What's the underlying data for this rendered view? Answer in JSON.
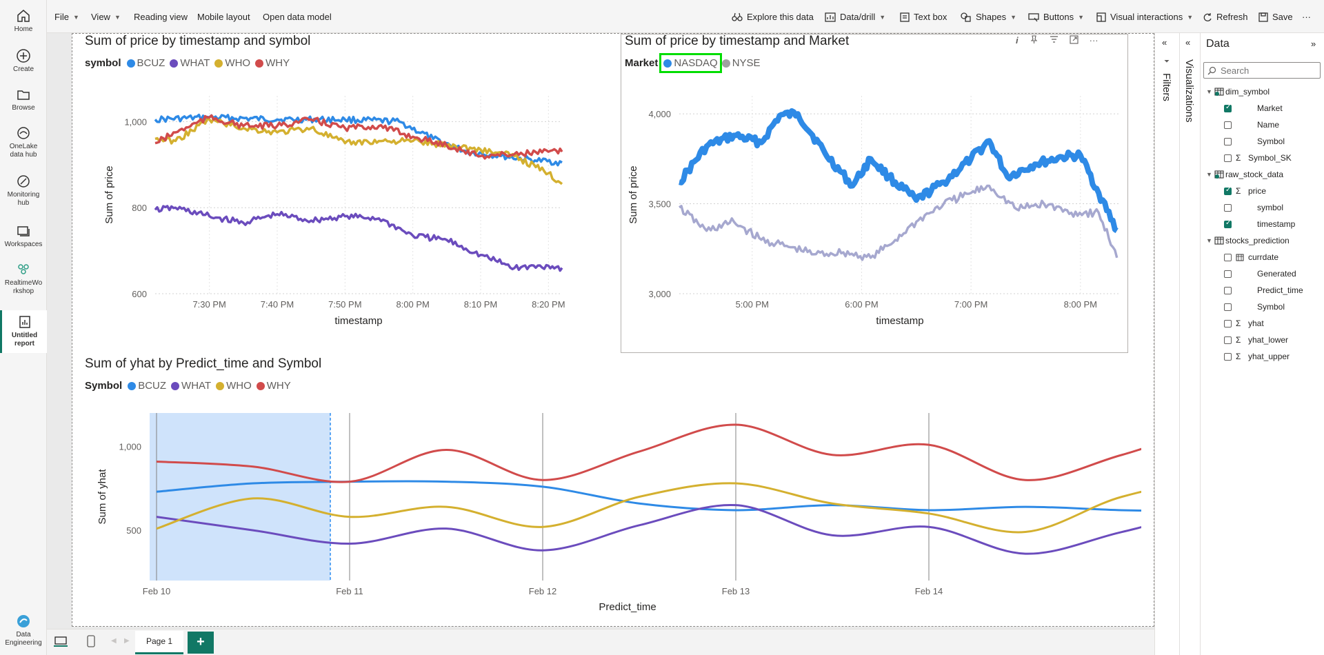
{
  "nav": {
    "items": [
      {
        "label": "Home",
        "icon": "home-icon"
      },
      {
        "label": "Create",
        "icon": "plus-circle-icon"
      },
      {
        "label": "Browse",
        "icon": "folder-icon"
      },
      {
        "label": "OneLake data hub",
        "icon": "onelake-icon"
      },
      {
        "label": "Monitoring hub",
        "icon": "monitor-icon"
      },
      {
        "label": "Workspaces",
        "icon": "workspaces-icon"
      },
      {
        "label": "RealtimeWorkshop",
        "icon": "workshop-icon"
      },
      {
        "label": "Untitled report",
        "icon": "report-icon"
      }
    ],
    "footer_label": "Data Engineering"
  },
  "toolbar": {
    "file": "File",
    "view": "View",
    "reading_view": "Reading view",
    "mobile_layout": "Mobile layout",
    "open_data_model": "Open data model",
    "explore": "Explore this data",
    "data_drill": "Data/drill",
    "text_box": "Text box",
    "shapes": "Shapes",
    "buttons": "Buttons",
    "visual_interactions": "Visual interactions",
    "refresh": "Refresh",
    "save": "Save"
  },
  "colors": {
    "bcuz": "#2e8ae6",
    "what": "#6b4cbd",
    "who": "#d4b02f",
    "why": "#d14b4b",
    "nyse": "#a6a8cf",
    "highlight": "#00dd00",
    "selection": "#cfe3fb"
  },
  "chart1": {
    "title": "Sum of price by timestamp and symbol",
    "legend_title": "symbol",
    "xlabel": "timestamp",
    "ylabel": "Sum of price"
  },
  "chart2": {
    "title": "Sum of price by timestamp and Market",
    "legend_title": "Market",
    "xlabel": "timestamp",
    "ylabel": "Sum of price",
    "info_glyph": "i"
  },
  "chart3": {
    "title": "Sum of yhat by Predict_time and Symbol",
    "legend_title": "Symbol",
    "xlabel": "Predict_time",
    "ylabel": "Sum of yhat"
  },
  "chart_data": [
    {
      "type": "line",
      "title": "Sum of price by timestamp and symbol",
      "xlabel": "timestamp",
      "ylabel": "Sum of price",
      "x_ticks": [
        "7:30 PM",
        "7:40 PM",
        "7:50 PM",
        "8:00 PM",
        "8:10 PM",
        "8:20 PM"
      ],
      "y_ticks": [
        "600",
        "800",
        "1,000"
      ],
      "ylim": [
        600,
        1060
      ],
      "legend_position": "top-left",
      "grid": true,
      "series": [
        {
          "name": "BCUZ",
          "color": "#2e8ae6",
          "x": [
            "7:22 PM",
            "7:30 PM",
            "7:40 PM",
            "7:50 PM",
            "7:58 PM",
            "8:03 PM",
            "8:08 PM",
            "8:13 PM",
            "8:18 PM",
            "8:22 PM"
          ],
          "values": [
            1005,
            1010,
            1005,
            1005,
            1000,
            960,
            930,
            920,
            910,
            905
          ]
        },
        {
          "name": "WHAT",
          "color": "#6b4cbd",
          "x": [
            "7:22 PM",
            "7:25 PM",
            "7:30 PM",
            "7:35 PM",
            "7:40 PM",
            "7:45 PM",
            "7:50 PM",
            "7:55 PM",
            "8:00 PM",
            "8:05 PM",
            "8:10 PM",
            "8:15 PM",
            "8:20 PM",
            "8:22 PM"
          ],
          "values": [
            795,
            800,
            780,
            765,
            785,
            770,
            780,
            775,
            735,
            725,
            690,
            660,
            665,
            660
          ]
        },
        {
          "name": "WHO",
          "color": "#d4b02f",
          "x": [
            "7:22 PM",
            "7:25 PM",
            "7:30 PM",
            "7:35 PM",
            "7:40 PM",
            "7:45 PM",
            "7:50 PM",
            "7:55 PM",
            "8:00 PM",
            "8:05 PM",
            "8:10 PM",
            "8:15 PM",
            "8:20 PM",
            "8:22 PM"
          ],
          "values": [
            960,
            955,
            1005,
            985,
            975,
            985,
            950,
            955,
            955,
            945,
            935,
            920,
            880,
            855
          ]
        },
        {
          "name": "WHY",
          "color": "#d14b4b",
          "x": [
            "7:22 PM",
            "7:25 PM",
            "7:30 PM",
            "7:35 PM",
            "7:40 PM",
            "7:45 PM",
            "7:50 PM",
            "7:55 PM",
            "8:00 PM",
            "8:05 PM",
            "8:10 PM",
            "8:15 PM",
            "8:20 PM",
            "8:22 PM"
          ],
          "values": [
            950,
            975,
            1010,
            990,
            990,
            1005,
            985,
            990,
            965,
            945,
            920,
            925,
            930,
            930
          ]
        }
      ]
    },
    {
      "type": "line",
      "title": "Sum of price by timestamp and Market",
      "xlabel": "timestamp",
      "ylabel": "Sum of price",
      "x_ticks": [
        "5:00 PM",
        "6:00 PM",
        "7:00 PM",
        "8:00 PM"
      ],
      "y_ticks": [
        "3,000",
        "3,500",
        "4,000"
      ],
      "ylim": [
        3000,
        4100
      ],
      "legend_position": "top-left",
      "grid": true,
      "series": [
        {
          "name": "NASDAQ",
          "color": "#2e8ae6",
          "x": [
            "4:20 PM",
            "4:35 PM",
            "4:50 PM",
            "5:05 PM",
            "5:15 PM",
            "5:25 PM",
            "5:40 PM",
            "5:55 PM",
            "6:05 PM",
            "6:15 PM",
            "6:30 PM",
            "6:45 PM",
            "7:00 PM",
            "7:10 PM",
            "7:20 PM",
            "7:35 PM",
            "7:50 PM",
            "8:00 PM",
            "8:10 PM",
            "8:20 PM"
          ],
          "values": [
            3620,
            3820,
            3880,
            3840,
            3990,
            4000,
            3780,
            3600,
            3750,
            3650,
            3520,
            3620,
            3750,
            3850,
            3650,
            3720,
            3760,
            3770,
            3560,
            3350
          ]
        },
        {
          "name": "NYSE",
          "color": "#a6a8cf",
          "x": [
            "4:20 PM",
            "4:35 PM",
            "4:50 PM",
            "5:05 PM",
            "5:20 PM",
            "5:35 PM",
            "5:50 PM",
            "6:05 PM",
            "6:15 PM",
            "6:30 PM",
            "6:45 PM",
            "7:00 PM",
            "7:10 PM",
            "7:25 PM",
            "7:40 PM",
            "7:55 PM",
            "8:10 PM",
            "8:20 PM"
          ],
          "values": [
            3480,
            3350,
            3400,
            3300,
            3260,
            3220,
            3230,
            3200,
            3270,
            3400,
            3500,
            3560,
            3600,
            3470,
            3500,
            3450,
            3450,
            3200
          ]
        }
      ]
    },
    {
      "type": "line",
      "title": "Sum of yhat by Predict_time and Symbol",
      "xlabel": "Predict_time",
      "ylabel": "Sum of yhat",
      "x_ticks": [
        "Feb 10",
        "Feb 11",
        "Feb 12",
        "Feb 13",
        "Feb 14"
      ],
      "y_ticks": [
        "500",
        "1,000"
      ],
      "ylim": [
        200,
        1200
      ],
      "legend_position": "top-left",
      "grid": false,
      "series": [
        {
          "name": "BCUZ",
          "color": "#2e8ae6",
          "x": [
            0,
            0.5,
            1,
            1.5,
            2,
            2.5,
            3,
            3.5,
            4,
            4.5,
            5,
            5.5,
            5.6
          ],
          "values": [
            730,
            780,
            790,
            790,
            760,
            660,
            620,
            650,
            620,
            640,
            620,
            610,
            610
          ]
        },
        {
          "name": "WHAT",
          "color": "#6b4cbd",
          "x": [
            0,
            0.5,
            1,
            1.5,
            2,
            2.5,
            3,
            3.5,
            4,
            4.5,
            5,
            5.5,
            5.6
          ],
          "values": [
            580,
            500,
            420,
            510,
            380,
            530,
            650,
            470,
            520,
            360,
            490,
            620,
            490
          ]
        },
        {
          "name": "WHO",
          "color": "#d4b02f",
          "x": [
            0,
            0.5,
            1,
            1.5,
            2,
            2.5,
            3,
            3.5,
            4,
            4.5,
            5,
            5.5,
            5.6
          ],
          "values": [
            510,
            690,
            580,
            640,
            520,
            700,
            780,
            660,
            600,
            490,
            700,
            800,
            620
          ]
        },
        {
          "name": "WHY",
          "color": "#d14b4b",
          "x": [
            0,
            0.5,
            1,
            1.5,
            2,
            2.5,
            3,
            3.5,
            4,
            4.5,
            5,
            5.5,
            5.6
          ],
          "values": [
            910,
            880,
            790,
            980,
            800,
            970,
            1130,
            950,
            1010,
            800,
            950,
            1110,
            910
          ]
        }
      ]
    }
  ],
  "bottom": {
    "page_tab": "Page 1",
    "add_page": "+"
  },
  "filters_label": "Filters",
  "viz_label": "Visualizations",
  "data_pane": {
    "title": "Data",
    "search_placeholder": "Search",
    "tables": [
      {
        "name": "dim_symbol",
        "fields": [
          {
            "name": "Market",
            "sigma": false,
            "checked": true
          },
          {
            "name": "Name",
            "sigma": false,
            "checked": false
          },
          {
            "name": "Symbol",
            "sigma": false,
            "checked": false
          },
          {
            "name": "Symbol_SK",
            "sigma": true,
            "checked": false
          }
        ]
      },
      {
        "name": "raw_stock_data",
        "fields": [
          {
            "name": "price",
            "sigma": true,
            "checked": true
          },
          {
            "name": "symbol",
            "sigma": false,
            "checked": false
          },
          {
            "name": "timestamp",
            "sigma": false,
            "checked": true
          }
        ]
      },
      {
        "name": "stocks_prediction",
        "fields": [
          {
            "name": "currdate",
            "sigma": false,
            "checked": false,
            "calendar": true
          },
          {
            "name": "Generated",
            "sigma": false,
            "checked": false
          },
          {
            "name": "Predict_time",
            "sigma": false,
            "checked": false
          },
          {
            "name": "Symbol",
            "sigma": false,
            "checked": false
          },
          {
            "name": "yhat",
            "sigma": true,
            "checked": false
          },
          {
            "name": "yhat_lower",
            "sigma": true,
            "checked": false
          },
          {
            "name": "yhat_upper",
            "sigma": true,
            "checked": false
          }
        ]
      }
    ]
  }
}
